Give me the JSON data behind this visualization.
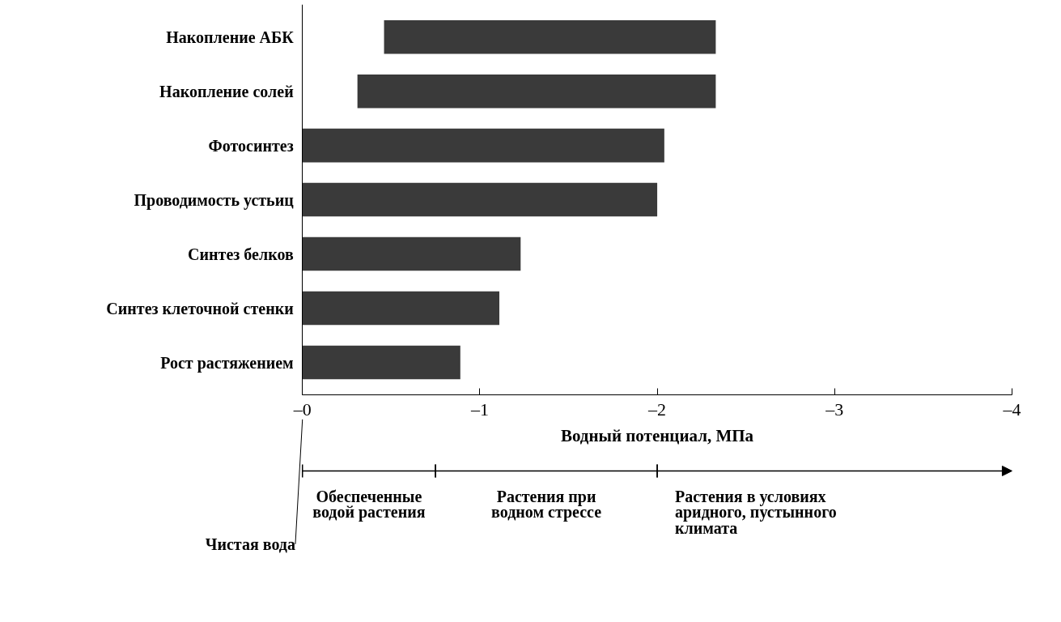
{
  "chart_data": {
    "type": "bar",
    "orientation": "horizontal",
    "categories": [
      "Накопление АБК",
      "Накопление солей",
      "Фотосинтез",
      "Проводимость устьиц",
      "Синтез белков",
      "Синтез клеточной стенки",
      "Рост растяжением"
    ],
    "base": [
      -0.46,
      -0.31,
      0,
      0,
      0,
      0,
      0
    ],
    "values": [
      -1.87,
      -2.02,
      -2.04,
      -2.0,
      -1.23,
      -1.11,
      -0.89
    ],
    "color": "#3a3a3a",
    "xlabel": "Водный потенциал, МПа",
    "xlim": [
      0,
      -4
    ],
    "xticks": [
      {
        "value": 0,
        "label": "–0"
      },
      {
        "value": -1,
        "label": "–1"
      },
      {
        "value": -2,
        "label": "–2"
      },
      {
        "value": -3,
        "label": "–3"
      },
      {
        "value": -4,
        "label": "–4"
      }
    ],
    "annotations": [
      "Чистая вода",
      "Обеспеченные водой растения",
      "Растения при водном стрессе",
      "Растения в условиях аридного, пустынного климата"
    ],
    "grid": false
  }
}
